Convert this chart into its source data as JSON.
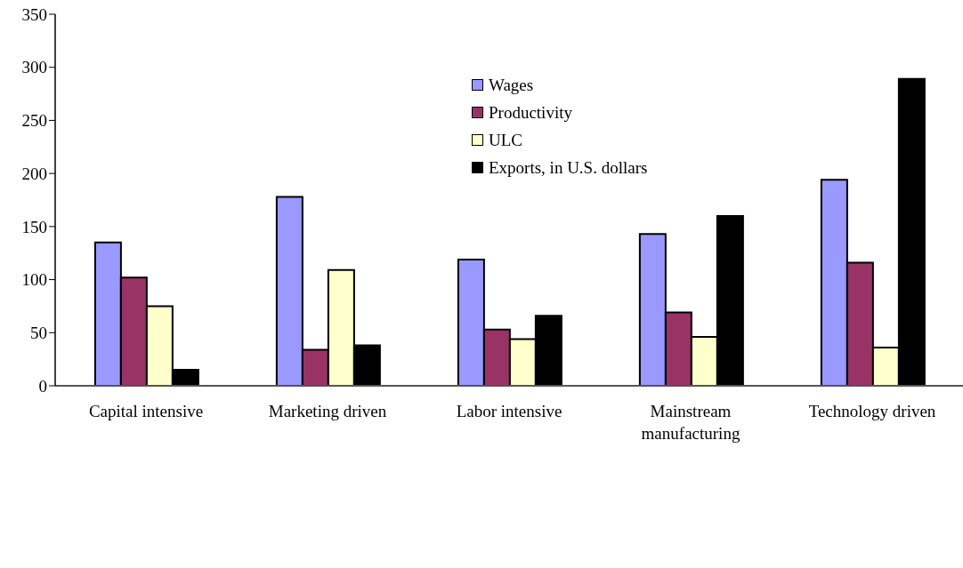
{
  "chart_data": {
    "type": "bar",
    "categories": [
      "Capital intensive",
      "Marketing driven",
      "Labor intensive",
      "Mainstream manufacturing",
      "Technology driven"
    ],
    "series": [
      {
        "name": "Wages",
        "color": "#9999ff",
        "values": [
          135,
          178,
          119,
          143,
          194
        ]
      },
      {
        "name": "Productivity",
        "color": "#993366",
        "values": [
          102,
          34,
          53,
          69,
          116
        ]
      },
      {
        "name": "ULC",
        "color": "#ffffcc",
        "values": [
          75,
          109,
          44,
          46,
          36
        ]
      },
      {
        "name": "Exports, in U.S. dollars",
        "color": "#000000",
        "values": [
          15,
          38,
          66,
          160,
          289
        ]
      }
    ],
    "ylim": [
      0,
      350
    ],
    "yticks": [
      0,
      50,
      100,
      150,
      200,
      250,
      300,
      350
    ],
    "grid": false,
    "legend": "top"
  }
}
